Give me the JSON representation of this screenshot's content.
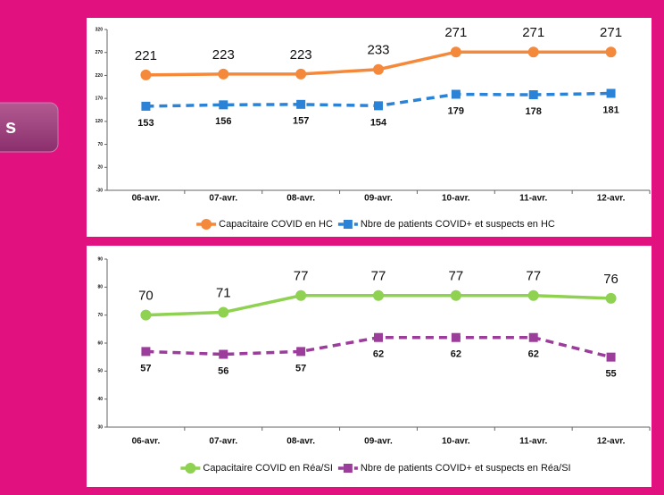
{
  "button": {
    "label": "s"
  },
  "chart_data": [
    {
      "type": "line",
      "categories": [
        "06-avr.",
        "07-avr.",
        "08-avr.",
        "09-avr.",
        "10-avr.",
        "11-avr.",
        "12-avr."
      ],
      "ylim": [
        -30,
        320
      ],
      "yticks": [
        -30,
        20,
        70,
        120,
        170,
        220,
        270,
        320
      ],
      "series": [
        {
          "name": "Capacitaire COVID en HC",
          "color": "#f5893b",
          "marker": "circle",
          "line_style": "solid",
          "values": [
            221,
            223,
            223,
            233,
            271,
            271,
            271
          ]
        },
        {
          "name": "Nbre de patients COVID+ et suspects en HC",
          "color": "#2a83d6",
          "marker": "square",
          "line_style": "dashed",
          "values": [
            153,
            156,
            157,
            154,
            179,
            178,
            181
          ]
        }
      ]
    },
    {
      "type": "line",
      "categories": [
        "06-avr.",
        "07-avr.",
        "08-avr.",
        "09-avr.",
        "10-avr.",
        "11-avr.",
        "12-avr."
      ],
      "ylim": [
        30,
        90
      ],
      "yticks": [
        30,
        40,
        50,
        60,
        70,
        80,
        90
      ],
      "series": [
        {
          "name": "Capacitaire COVID en Réa/SI",
          "color": "#8fd150",
          "marker": "circle",
          "line_style": "solid",
          "values": [
            70,
            71,
            77,
            77,
            77,
            77,
            76
          ]
        },
        {
          "name": "Nbre de patients COVID+ et suspects en Réa/SI",
          "color": "#9c3d9c",
          "marker": "square",
          "line_style": "dashed",
          "values": [
            57,
            56,
            57,
            62,
            62,
            62,
            55
          ]
        }
      ]
    }
  ]
}
